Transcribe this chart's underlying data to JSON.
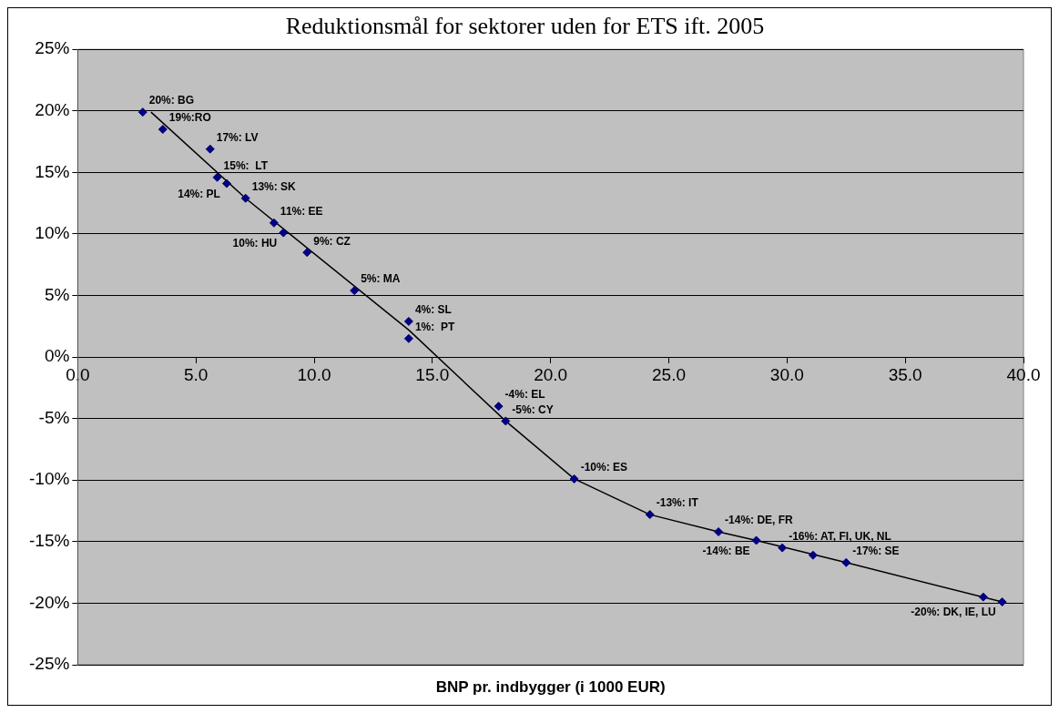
{
  "chart_data": {
    "type": "scatter",
    "title": "Reduktionsmål for sektorer uden for ETS ift. 2005",
    "xlabel": "BNP pr. indbygger (i 1000 EUR)",
    "xlim": [
      0,
      40
    ],
    "ylim": [
      -25,
      25
    ],
    "xticks": [
      {
        "value": 0,
        "label": "0.0"
      },
      {
        "value": 5,
        "label": "5.0"
      },
      {
        "value": 10,
        "label": "10.0"
      },
      {
        "value": 15,
        "label": "15.0"
      },
      {
        "value": 20,
        "label": "20.0"
      },
      {
        "value": 25,
        "label": "25.0"
      },
      {
        "value": 30,
        "label": "30.0"
      },
      {
        "value": 35,
        "label": "35.0"
      },
      {
        "value": 40,
        "label": "40.0"
      }
    ],
    "yticks": [
      {
        "value": 25,
        "label": "25%"
      },
      {
        "value": 20,
        "label": "20%"
      },
      {
        "value": 15,
        "label": "15%"
      },
      {
        "value": 10,
        "label": "10%"
      },
      {
        "value": 5,
        "label": "5%"
      },
      {
        "value": 0,
        "label": "0%"
      },
      {
        "value": -5,
        "label": "-5%"
      },
      {
        "value": -10,
        "label": "-10%"
      },
      {
        "value": -15,
        "label": "-15%"
      },
      {
        "value": -20,
        "label": "-20%"
      },
      {
        "value": -25,
        "label": "-25%"
      }
    ],
    "grid": "y",
    "legend": false,
    "series": [
      {
        "type": "scatter",
        "marker": "diamond",
        "color": "#000080",
        "x": [
          2.75,
          3.6,
          5.6,
          5.9,
          6.3,
          7.1,
          8.3,
          8.7,
          9.7,
          11.7,
          14.0,
          14.0,
          17.8,
          18.1,
          21.0,
          24.2,
          27.1,
          28.7,
          29.8,
          31.1,
          32.5,
          38.3,
          39.1
        ],
        "values": [
          19.9,
          18.5,
          16.9,
          14.6,
          14.1,
          12.9,
          10.9,
          10.1,
          8.5,
          5.4,
          2.9,
          1.5,
          -4.0,
          -5.2,
          -9.9,
          -12.8,
          -14.2,
          -14.9,
          -15.5,
          -16.1,
          -16.7,
          -19.5,
          -19.9
        ]
      },
      {
        "type": "line",
        "marker": "none",
        "line_style": "solid",
        "color": "#000000",
        "x": [
          3.1,
          7.1,
          14.0,
          18.1,
          21.0,
          24.2,
          27.1,
          28.7,
          32.5,
          39.1
        ],
        "values": [
          19.9,
          12.9,
          2.2,
          -5.2,
          -9.9,
          -12.8,
          -14.2,
          -14.9,
          -16.7,
          -19.9
        ]
      }
    ],
    "annotations": [
      {
        "text": "20%: BG",
        "x": 2.75,
        "y": 19.9
      },
      {
        "text": "19%:RO",
        "x": 3.6,
        "y": 18.5
      },
      {
        "text": "17%: LV",
        "x": 5.6,
        "y": 16.9
      },
      {
        "text": "15%:  LT",
        "x": 5.9,
        "y": 14.6
      },
      {
        "text": "14%: PL",
        "x": 6.3,
        "y": 14.1
      },
      {
        "text": "13%: SK",
        "x": 7.1,
        "y": 12.9
      },
      {
        "text": "11%: EE",
        "x": 8.3,
        "y": 10.9
      },
      {
        "text": "10%: HU",
        "x": 8.7,
        "y": 10.1
      },
      {
        "text": "9%: CZ",
        "x": 9.7,
        "y": 8.5
      },
      {
        "text": "5%: MA",
        "x": 11.7,
        "y": 5.4
      },
      {
        "text": "4%: SL",
        "x": 14.0,
        "y": 2.9
      },
      {
        "text": "1%:  PT",
        "x": 14.0,
        "y": 1.5
      },
      {
        "text": "-4%: EL",
        "x": 17.8,
        "y": -4.0
      },
      {
        "text": "-5%: CY",
        "x": 18.1,
        "y": -5.2
      },
      {
        "text": "-10%: ES",
        "x": 21.0,
        "y": -9.9
      },
      {
        "text": "-13%: IT",
        "x": 24.2,
        "y": -12.8
      },
      {
        "text": "-14%: DE, FR",
        "x": 27.1,
        "y": -14.2
      },
      {
        "text": "-14%: BE",
        "x": 28.7,
        "y": -14.9
      },
      {
        "text": "-16%: AT, FI, UK, NL",
        "x": 29.8,
        "y": -15.5
      },
      {
        "text": "-17%: SE",
        "x": 32.5,
        "y": -16.7
      },
      {
        "text": "-20%: DK, IE, LU",
        "x": 39.1,
        "y": -19.9
      }
    ]
  }
}
